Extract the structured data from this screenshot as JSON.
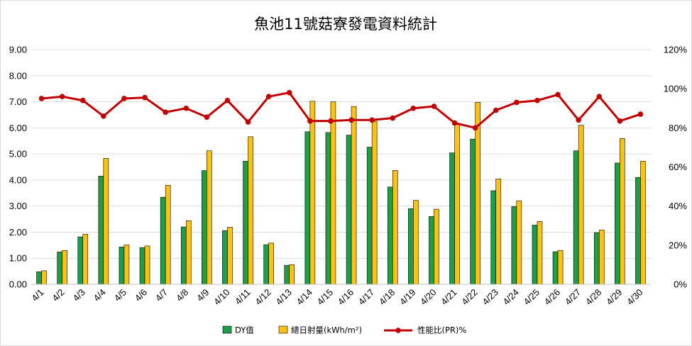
{
  "chart_data": {
    "type": "bar",
    "title": "魚池11號菇寮發電資料統計",
    "categories": [
      "4/1",
      "4/2",
      "4/3",
      "4/4",
      "4/5",
      "4/6",
      "4/7",
      "4/8",
      "4/9",
      "4/10",
      "4/11",
      "4/12",
      "4/13",
      "4/14",
      "4/15",
      "4/16",
      "4/17",
      "4/18",
      "4/19",
      "4/20",
      "4/21",
      "4/22",
      "4/23",
      "4/24",
      "4/25",
      "4/26",
      "4/27",
      "4/28",
      "4/29",
      "4/30"
    ],
    "series": [
      {
        "name": "DY值",
        "kind": "bar",
        "axis": "left",
        "color": "#1f9e4a",
        "values": [
          0.48,
          1.24,
          1.82,
          4.15,
          1.43,
          1.41,
          3.34,
          2.2,
          4.36,
          2.06,
          4.72,
          1.52,
          0.73,
          5.85,
          5.82,
          5.72,
          5.26,
          3.73,
          2.9,
          2.6,
          5.04,
          5.57,
          3.59,
          2.98,
          2.27,
          1.25,
          5.12,
          1.98,
          4.65,
          4.1
        ]
      },
      {
        "name": "總日射量(kWh/m²)",
        "kind": "bar",
        "axis": "left",
        "color": "#ffc20e",
        "values": [
          0.52,
          1.3,
          1.92,
          4.83,
          1.51,
          1.47,
          3.8,
          2.44,
          5.12,
          2.19,
          5.66,
          1.58,
          0.75,
          7.02,
          7.0,
          6.82,
          6.25,
          4.37,
          3.22,
          2.88,
          6.13,
          6.98,
          4.04,
          3.2,
          2.41,
          1.3,
          6.1,
          2.08,
          5.59,
          4.72
        ]
      },
      {
        "name": "性能比(PR)%",
        "kind": "line",
        "axis": "right",
        "color": "#c00000",
        "values": [
          95,
          96,
          94,
          86,
          95,
          95.5,
          88,
          90,
          85.5,
          94,
          83,
          96,
          98,
          83.5,
          83.5,
          84,
          84,
          85,
          90,
          91,
          82.5,
          80,
          89,
          93,
          94,
          97,
          84,
          96,
          83.5,
          87
        ]
      }
    ],
    "y_left": {
      "min": 0,
      "max": 9,
      "step": 1,
      "tick_labels": [
        "0.00",
        "1.00",
        "2.00",
        "3.00",
        "4.00",
        "5.00",
        "6.00",
        "7.00",
        "8.00",
        "9.00"
      ]
    },
    "y_right": {
      "min": 0,
      "max": 120,
      "step": 20,
      "tick_labels": [
        "0%",
        "20%",
        "40%",
        "60%",
        "80%",
        "100%",
        "120%"
      ]
    },
    "xlabel": "",
    "ylabel": "",
    "grid": true,
    "legend_position": "bottom"
  }
}
